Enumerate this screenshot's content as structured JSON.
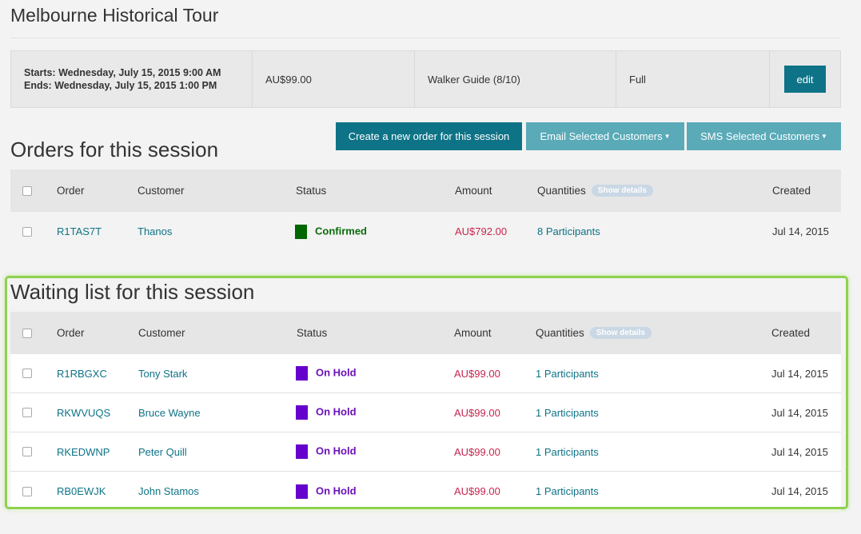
{
  "page_title": "Melbourne Historical Tour",
  "session": {
    "starts": "Starts: Wednesday, July 15, 2015 9:00 AM",
    "ends": "Ends: Wednesday, July 15, 2015 1:00 PM",
    "price": "AU$99.00",
    "guide": "Walker Guide (8/10)",
    "availability": "Full",
    "edit_label": "edit"
  },
  "actions": {
    "create_label": "Create a new order for this session",
    "email_label": "Email Selected Customers",
    "sms_label": "SMS Selected Customers"
  },
  "orders_section": {
    "title": "Orders for this session",
    "headers": {
      "order": "Order",
      "customer": "Customer",
      "status": "Status",
      "amount": "Amount",
      "quantities": "Quantities",
      "show_details": "Show details",
      "created": "Created"
    },
    "rows": [
      {
        "order": "R1TAS7T",
        "customer": "Thanos",
        "status": "Confirmed",
        "status_color": "#006600",
        "amount": "AU$792.00",
        "quantities": "8 Participants",
        "created": "Jul 14, 2015"
      }
    ]
  },
  "waiting_section": {
    "title": "Waiting list for this session",
    "headers": {
      "order": "Order",
      "customer": "Customer",
      "status": "Status",
      "amount": "Amount",
      "quantities": "Quantities",
      "show_details": "Show details",
      "created": "Created"
    },
    "rows": [
      {
        "order": "R1RBGXC",
        "customer": "Tony Stark",
        "status": "On Hold",
        "status_color": "#6600cc",
        "amount": "AU$99.00",
        "quantities": "1 Participants",
        "created": "Jul 14, 2015"
      },
      {
        "order": "RKWVUQS",
        "customer": "Bruce Wayne",
        "status": "On Hold",
        "status_color": "#6600cc",
        "amount": "AU$99.00",
        "quantities": "1 Participants",
        "created": "Jul 14, 2015"
      },
      {
        "order": "RKEDWNP",
        "customer": "Peter Quill",
        "status": "On Hold",
        "status_color": "#6600cc",
        "amount": "AU$99.00",
        "quantities": "1 Participants",
        "created": "Jul 14, 2015"
      },
      {
        "order": "RB0EWJK",
        "customer": "John Stamos",
        "status": "On Hold",
        "status_color": "#6600cc",
        "amount": "AU$99.00",
        "quantities": "1 Participants",
        "created": "Jul 14, 2015"
      }
    ]
  }
}
